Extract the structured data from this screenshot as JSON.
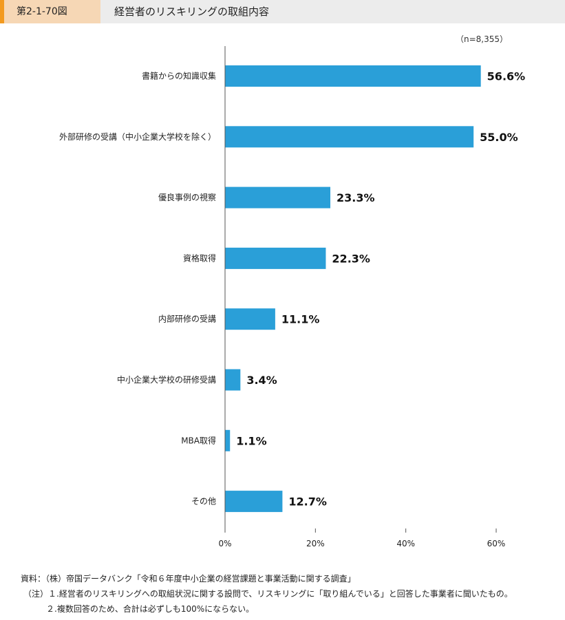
{
  "header": {
    "figure_id": "第2-1-70図",
    "title": "経営者のリスキリングの取組内容"
  },
  "chart_data": {
    "type": "bar",
    "orientation": "horizontal",
    "n_label": "（n=8,355）",
    "categories": [
      "書籍からの知識収集",
      "外部研修の受講（中小企業大学校を除く）",
      "優良事例の視察",
      "資格取得",
      "内部研修の受講",
      "中小企業大学校の研修受講",
      "MBA取得",
      "その他"
    ],
    "values": [
      56.6,
      55.0,
      23.3,
      22.3,
      11.1,
      3.4,
      1.1,
      12.7
    ],
    "value_labels": [
      "56.6%",
      "55.0%",
      "23.3%",
      "22.3%",
      "11.1%",
      "3.4%",
      "1.1%",
      "12.7%"
    ],
    "xlim": [
      0,
      60
    ],
    "ticks": [
      0,
      20,
      40,
      60
    ],
    "tick_labels": [
      "0%",
      "20%",
      "40%",
      "60%"
    ],
    "bar_color": "#2a9fd8",
    "grid": false
  },
  "notes": {
    "source": "資料：（株）帝国データバンク「令和６年度中小企業の経営課題と事業活動に関する調査」",
    "note1": "（注）１.経営者のリスキリングへの取組状況に関する設問で、リスキリングに「取り組んでいる」と回答した事業者に聞いたもの。",
    "note2": "２.複数回答のため、合計は必ずしも100%にならない。"
  }
}
